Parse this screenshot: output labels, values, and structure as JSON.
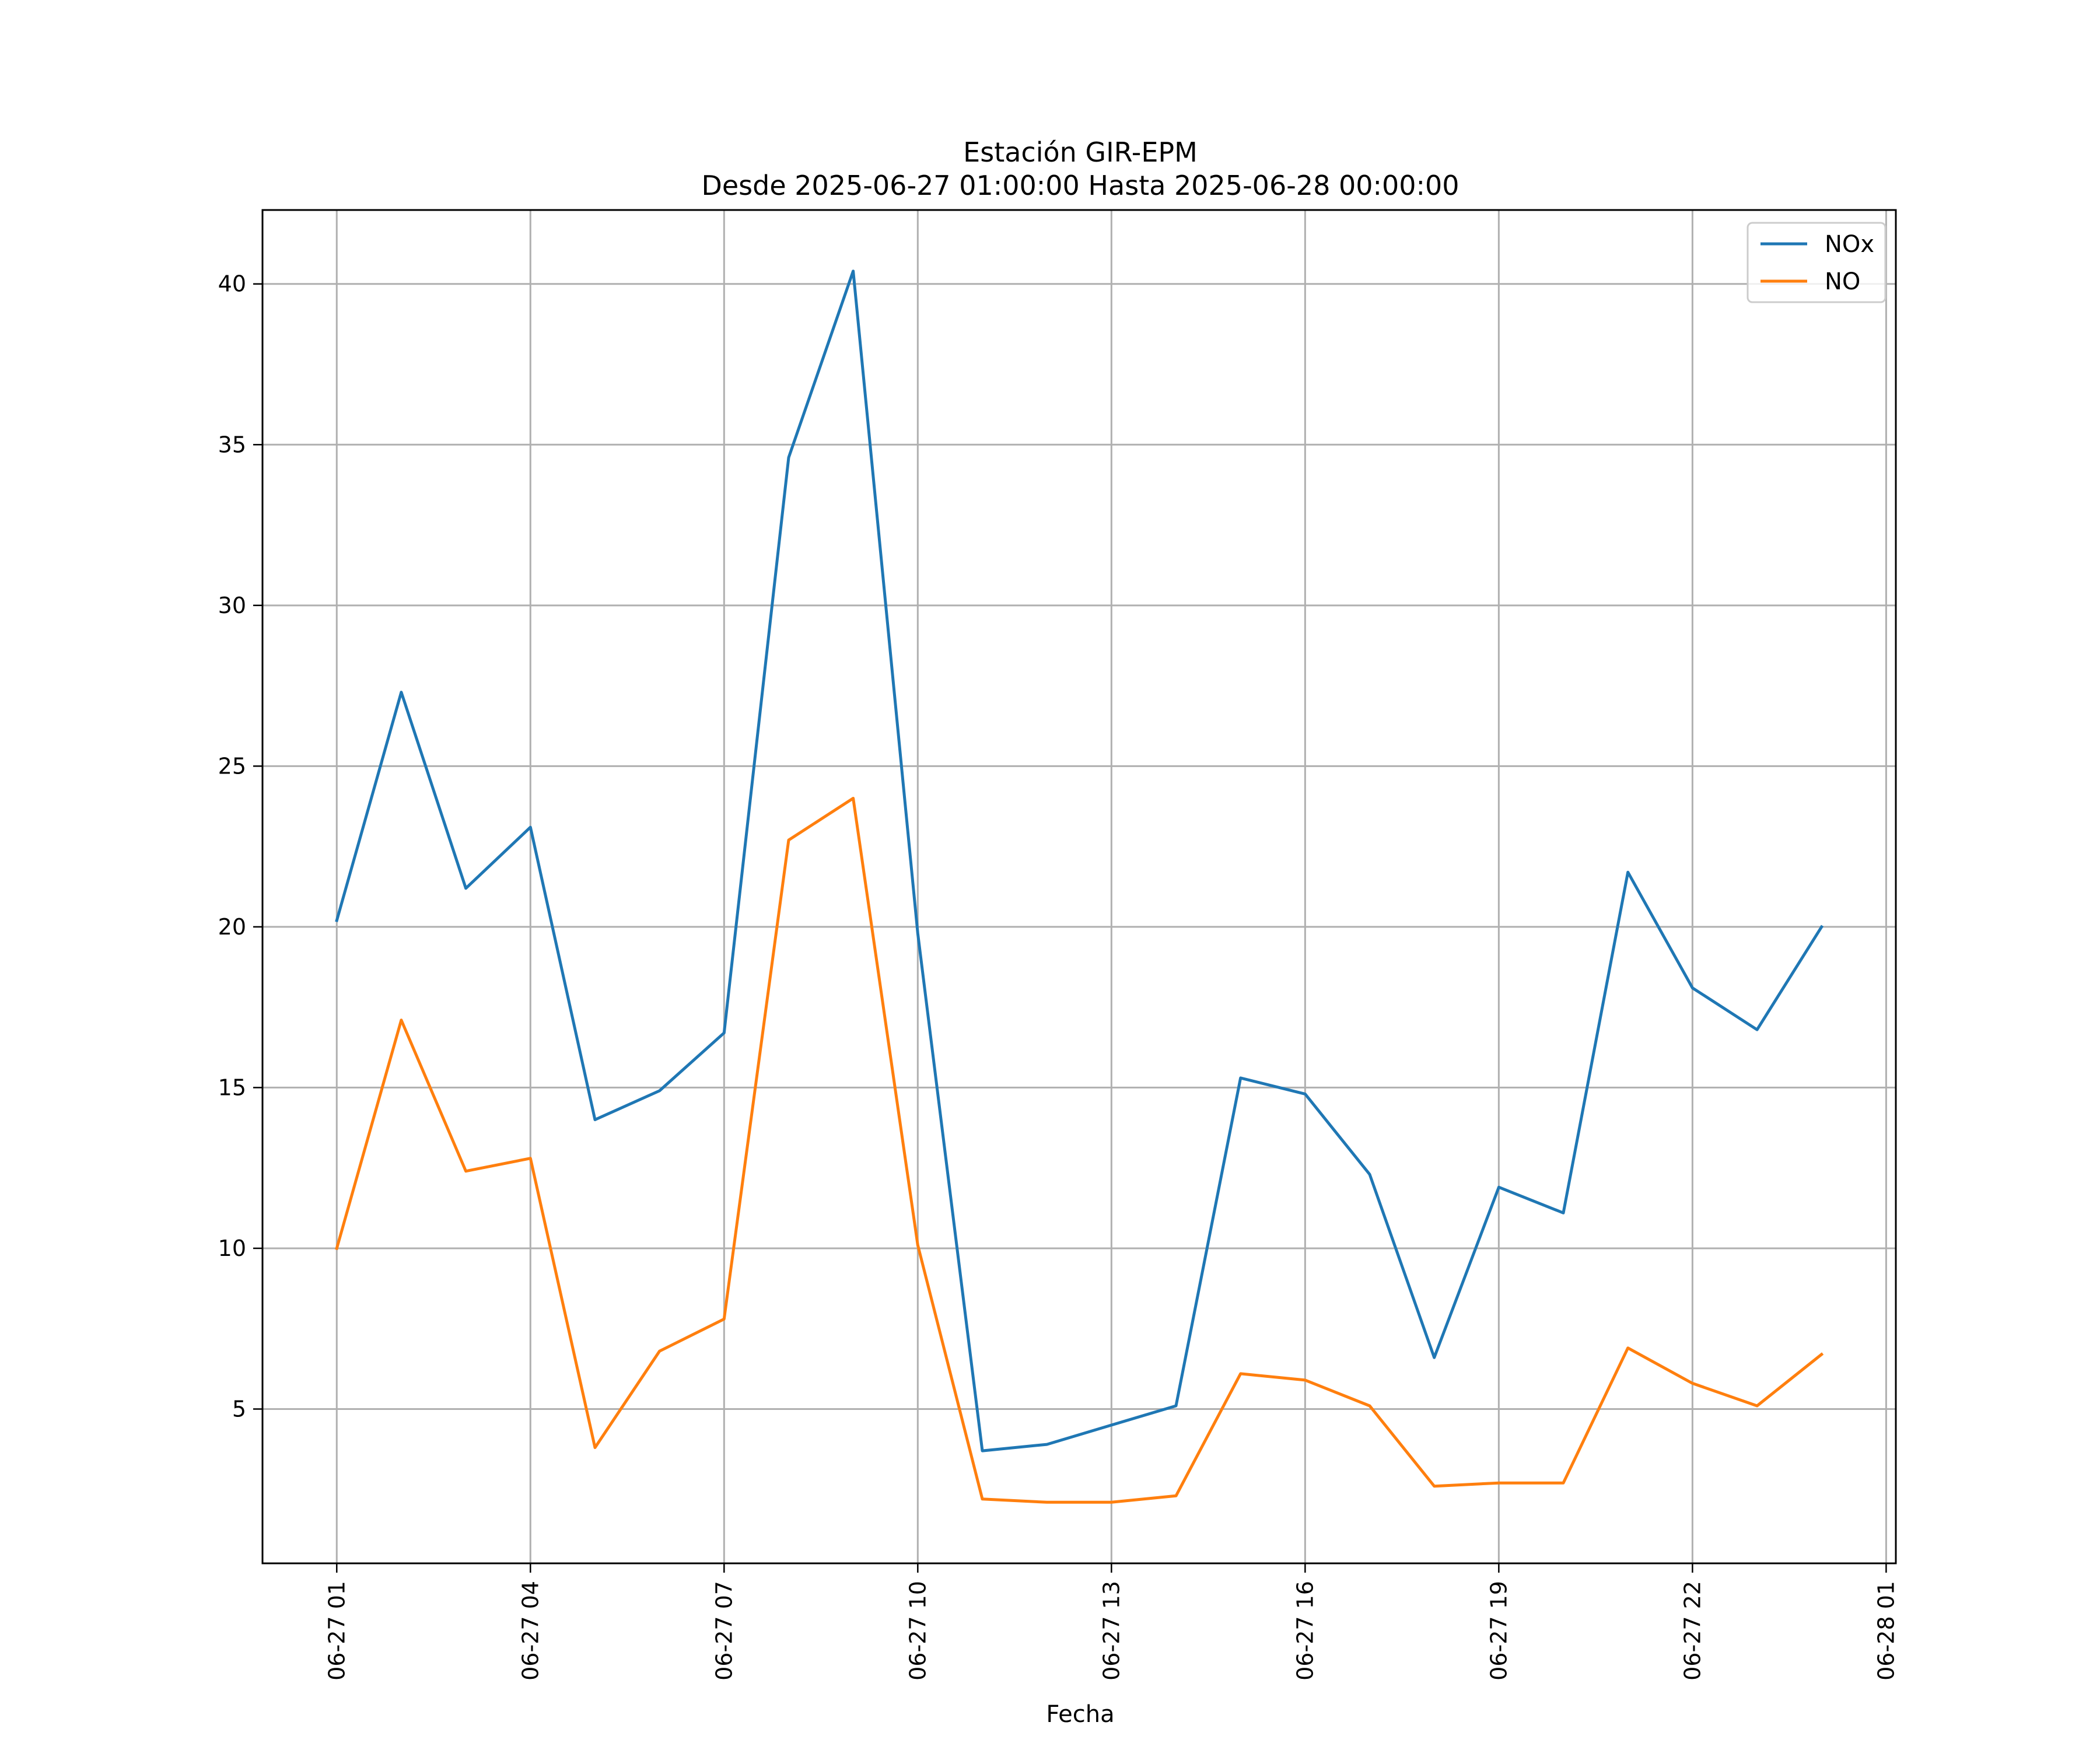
{
  "chart_data": {
    "type": "line",
    "title": "Estación GIR-EPM",
    "subtitle": "Desde 2025-06-27 01:00:00 Hasta 2025-06-28 00:00:00",
    "xlabel": "Fecha",
    "ylabel": "",
    "x": [
      "06-27 01",
      "06-27 02",
      "06-27 03",
      "06-27 04",
      "06-27 05",
      "06-27 06",
      "06-27 07",
      "06-27 08",
      "06-27 09",
      "06-27 10",
      "06-27 11",
      "06-27 12",
      "06-27 13",
      "06-27 14",
      "06-27 15",
      "06-27 16",
      "06-27 17",
      "06-27 18",
      "06-27 19",
      "06-27 20",
      "06-27 21",
      "06-27 22",
      "06-27 23",
      "06-28 00"
    ],
    "x_ticks": [
      "06-27 01",
      "06-27 04",
      "06-27 07",
      "06-27 10",
      "06-27 13",
      "06-27 16",
      "06-27 19",
      "06-27 22",
      "06-28 01"
    ],
    "y_ticks": [
      5,
      10,
      15,
      20,
      25,
      30,
      35,
      40
    ],
    "xlim": [
      "06-26 23:51",
      "06-28 01:09"
    ],
    "ylim": [
      0.2,
      42.3
    ],
    "grid": true,
    "legend_position": "top-right",
    "series": [
      {
        "name": "NOx",
        "color": "#1f77b4",
        "values": [
          20.2,
          27.3,
          21.2,
          23.1,
          14.0,
          14.9,
          16.7,
          34.6,
          40.4,
          19.8,
          3.7,
          3.9,
          4.5,
          5.1,
          15.3,
          14.8,
          12.3,
          6.6,
          11.9,
          11.1,
          21.7,
          18.1,
          16.8,
          20.0
        ]
      },
      {
        "name": "NO",
        "color": "#ff7f0e",
        "values": [
          10.0,
          17.1,
          12.4,
          12.8,
          3.8,
          6.8,
          7.8,
          22.7,
          24.0,
          10.1,
          2.2,
          2.1,
          2.1,
          2.3,
          6.1,
          5.9,
          5.1,
          2.6,
          2.7,
          2.7,
          6.9,
          5.8,
          5.1,
          6.7
        ]
      }
    ]
  }
}
